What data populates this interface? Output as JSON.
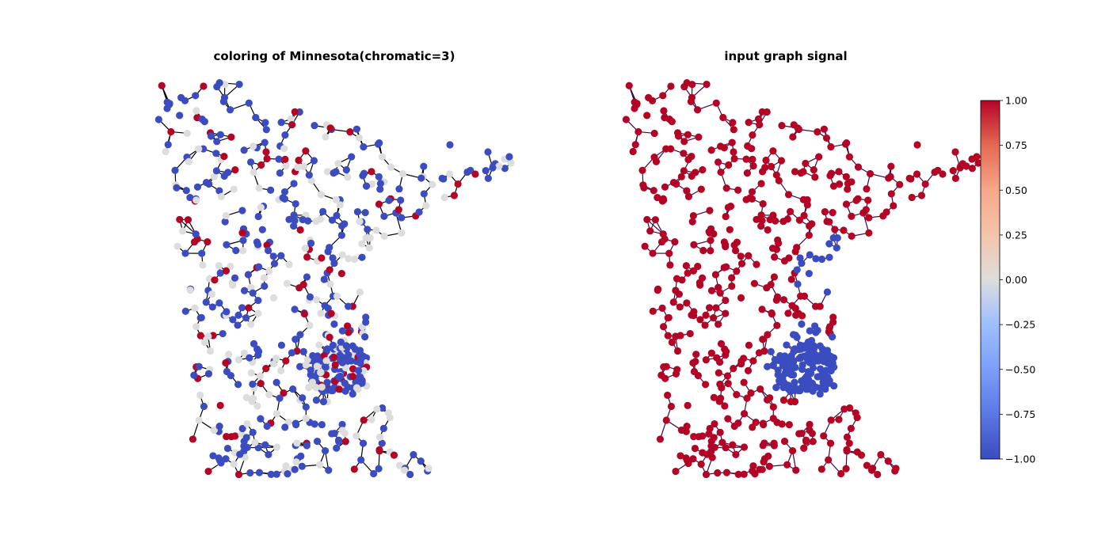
{
  "chart_data": [
    {
      "type": "graph",
      "title": "coloring of Minnesota(chromatic=3)",
      "node_values": [
        "-1 (blue)",
        "0 (grey)",
        "1 (red)"
      ],
      "node_count_approx": 640,
      "colormap": "coolwarm",
      "node_colors": {
        "-1": "#3b4cc0",
        "0": "#dddddd",
        "1": "#b40426"
      },
      "edge_color": "#000000"
    },
    {
      "type": "graph",
      "title": "input graph signal",
      "signal_values": [
        -1,
        1
      ],
      "description_values": {
        "twin_cities_region": -1,
        "rest_of_state": 1
      },
      "colormap": "coolwarm",
      "node_colors": {
        "-1": "#3b4cc0",
        "1": "#b40426"
      },
      "edge_color": "#3d0a3a",
      "colorbar": {
        "ticks": [
          "1.00",
          "0.75",
          "0.50",
          "0.25",
          "0.00",
          "−0.25",
          "−0.50",
          "−0.75",
          "−1.00"
        ],
        "tick_values": [
          1.0,
          0.75,
          0.5,
          0.25,
          0.0,
          -0.25,
          -0.5,
          -0.75,
          -1.0
        ],
        "range": [
          -1,
          1
        ]
      }
    }
  ]
}
